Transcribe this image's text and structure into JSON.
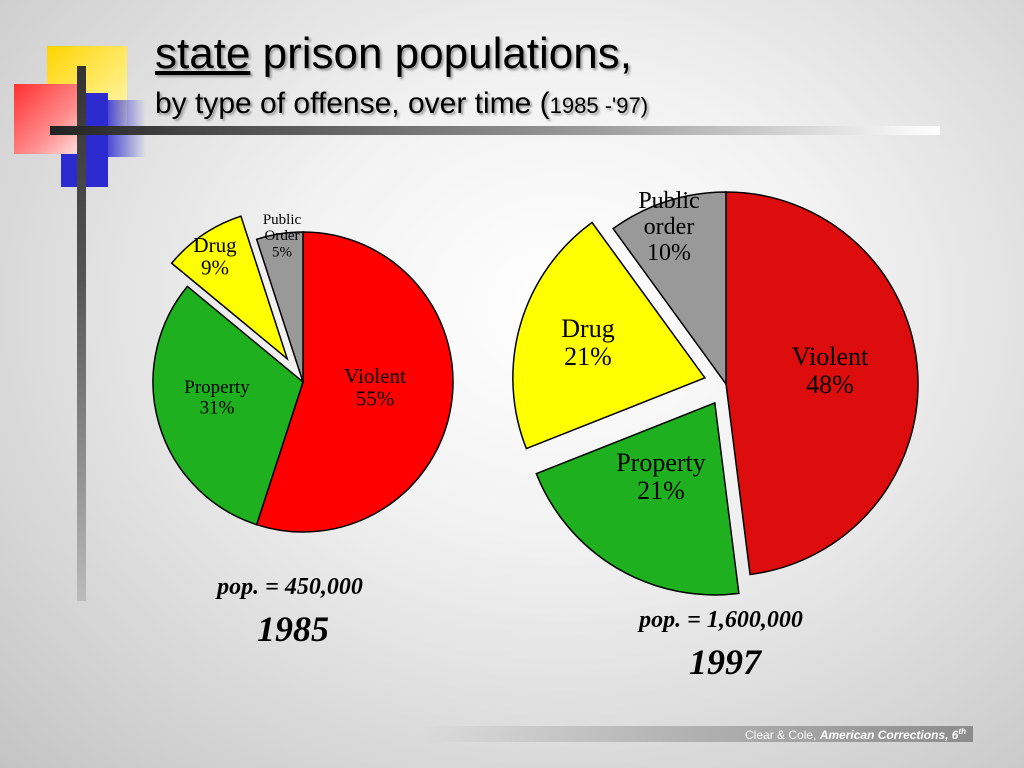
{
  "title": {
    "line1_underlined": "state",
    "line1_rest": " prison populations,",
    "line2_main": "by type of offense, over time (",
    "line2_years": "1985 -'97)"
  },
  "chart_data": [
    {
      "type": "pie",
      "title": "",
      "year": "1985",
      "population": "pop. = 450,000",
      "slices": [
        {
          "name": "Violent",
          "value": 55,
          "label": "55%",
          "color": "#ff0000"
        },
        {
          "name": "Property",
          "value": 31,
          "label": "31%",
          "color": "#1eb01e"
        },
        {
          "name": "Drug",
          "value": 9,
          "label": "9%",
          "color": "#ffff00",
          "exploded": true
        },
        {
          "name": "Public Order",
          "value": 5,
          "label": "5%",
          "color": "#999999"
        }
      ]
    },
    {
      "type": "pie",
      "title": "",
      "year": "1997",
      "population": "pop. = 1,600,000",
      "slices": [
        {
          "name": "Violent",
          "value": 48,
          "label": "48%",
          "color": "#dd0d0d"
        },
        {
          "name": "Property",
          "value": 21,
          "label": "21%",
          "color": "#1eb01e",
          "exploded": true
        },
        {
          "name": "Drug",
          "value": 21,
          "label": "21%",
          "color": "#ffff00",
          "exploded": true
        },
        {
          "name": "Public order",
          "value": 10,
          "label": "10%",
          "color": "#999999"
        }
      ]
    }
  ],
  "footer": {
    "authors": "Clear & Cole, ",
    "book": "American Corrections, 6",
    "edition_sup": "th"
  }
}
